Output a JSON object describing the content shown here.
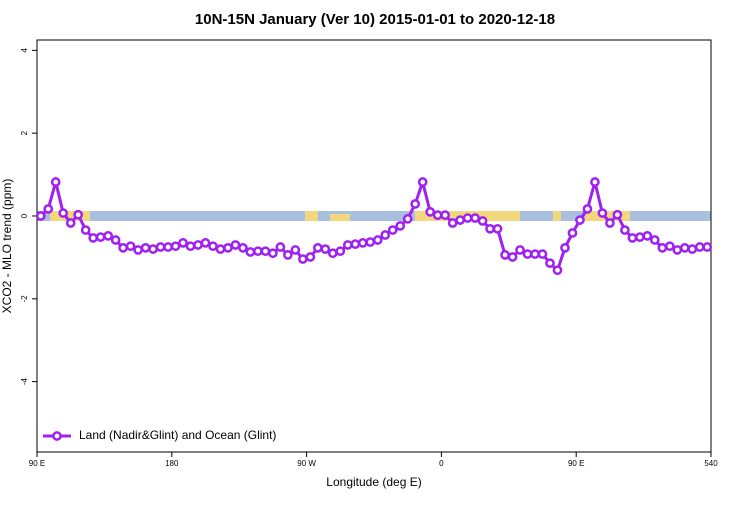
{
  "chart_data": {
    "type": "line",
    "title": "10N-15N January (Ver 10)   2015-01-01 to 2020-12-18",
    "x_label": "Longitude (deg E)",
    "y_label": "XCO2 - MLO trend (ppm)",
    "x": [
      92.5,
      97.5,
      102.5,
      107.5,
      112.5,
      117.5,
      122.5,
      127.5,
      132.5,
      137.5,
      142.5,
      147.5,
      152.5,
      157.5,
      162.5,
      167.5,
      172.5,
      177.5,
      182.5,
      187.5,
      192.5,
      197.5,
      202.5,
      207.5,
      212.5,
      217.5,
      222.5,
      227.5,
      232.5,
      237.5,
      242.5,
      247.5,
      252.5,
      257.5,
      262.5,
      267.5,
      272.5,
      277.5,
      282.5,
      287.5,
      292.5,
      297.5,
      302.5,
      307.5,
      312.5,
      317.5,
      322.5,
      327.5,
      332.5,
      337.5,
      342.5,
      347.5,
      352.5,
      357.5,
      362.5,
      367.5,
      372.5,
      377.5,
      382.5,
      387.5,
      392.5,
      397.5,
      402.5,
      407.5,
      412.5,
      417.5,
      422.5,
      427.5,
      432.5,
      437.5,
      442.5,
      447.5,
      452.5,
      457.5,
      462.5,
      467.5,
      472.5,
      477.5,
      482.5,
      487.5,
      492.5,
      497.5,
      502.5,
      507.5,
      512.5,
      517.5,
      522.5,
      527.5,
      532.5,
      537.5
    ],
    "series": [
      {
        "name": "Land (Nadir&Glint) and Ocean (Glint)",
        "color": "#a020f0",
        "values": [
          0,
          0.17,
          0.82,
          0.07,
          -0.17,
          0.03,
          -0.34,
          -0.53,
          -0.51,
          -0.48,
          -0.58,
          -0.77,
          -0.73,
          -0.82,
          -0.77,
          -0.8,
          -0.75,
          -0.75,
          -0.73,
          -0.65,
          -0.73,
          -0.7,
          -0.65,
          -0.73,
          -0.8,
          -0.77,
          -0.7,
          -0.77,
          -0.87,
          -0.85,
          -0.85,
          -0.9,
          -0.75,
          -0.94,
          -0.82,
          -1.04,
          -0.99,
          -0.77,
          -0.8,
          -0.9,
          -0.85,
          -0.7,
          -0.68,
          -0.65,
          -0.63,
          -0.58,
          -0.46,
          -0.34,
          -0.24,
          -0.07,
          0.29,
          0.82,
          0.1,
          0.02,
          0.02,
          -0.17,
          -0.1,
          -0.05,
          -0.05,
          -0.12,
          -0.31,
          -0.31,
          -0.94,
          -0.99,
          -0.82,
          -0.92,
          -0.92,
          -0.92,
          -1.14,
          -1.31,
          -0.77,
          -0.41,
          -0.1,
          0.17,
          0.82,
          0.07,
          -0.17,
          0.03,
          -0.34,
          -0.53,
          -0.51,
          -0.48,
          -0.58,
          -0.77,
          -0.73,
          -0.82,
          -0.77,
          -0.8,
          -0.75,
          -0.75
        ]
      }
    ],
    "xlim": [
      90,
      540
    ],
    "xticks": [
      {
        "value": 90,
        "label": "90 E"
      },
      180,
      {
        "value": 270,
        "label": "90 W"
      },
      {
        "value": 360,
        "label": "0"
      },
      {
        "value": 450,
        "label": "90 E"
      },
      540
    ],
    "ylim": [
      -5.7,
      4.25
    ],
    "yticks": [
      -4,
      -2,
      0,
      2,
      4
    ],
    "legend": "bottom-left"
  }
}
